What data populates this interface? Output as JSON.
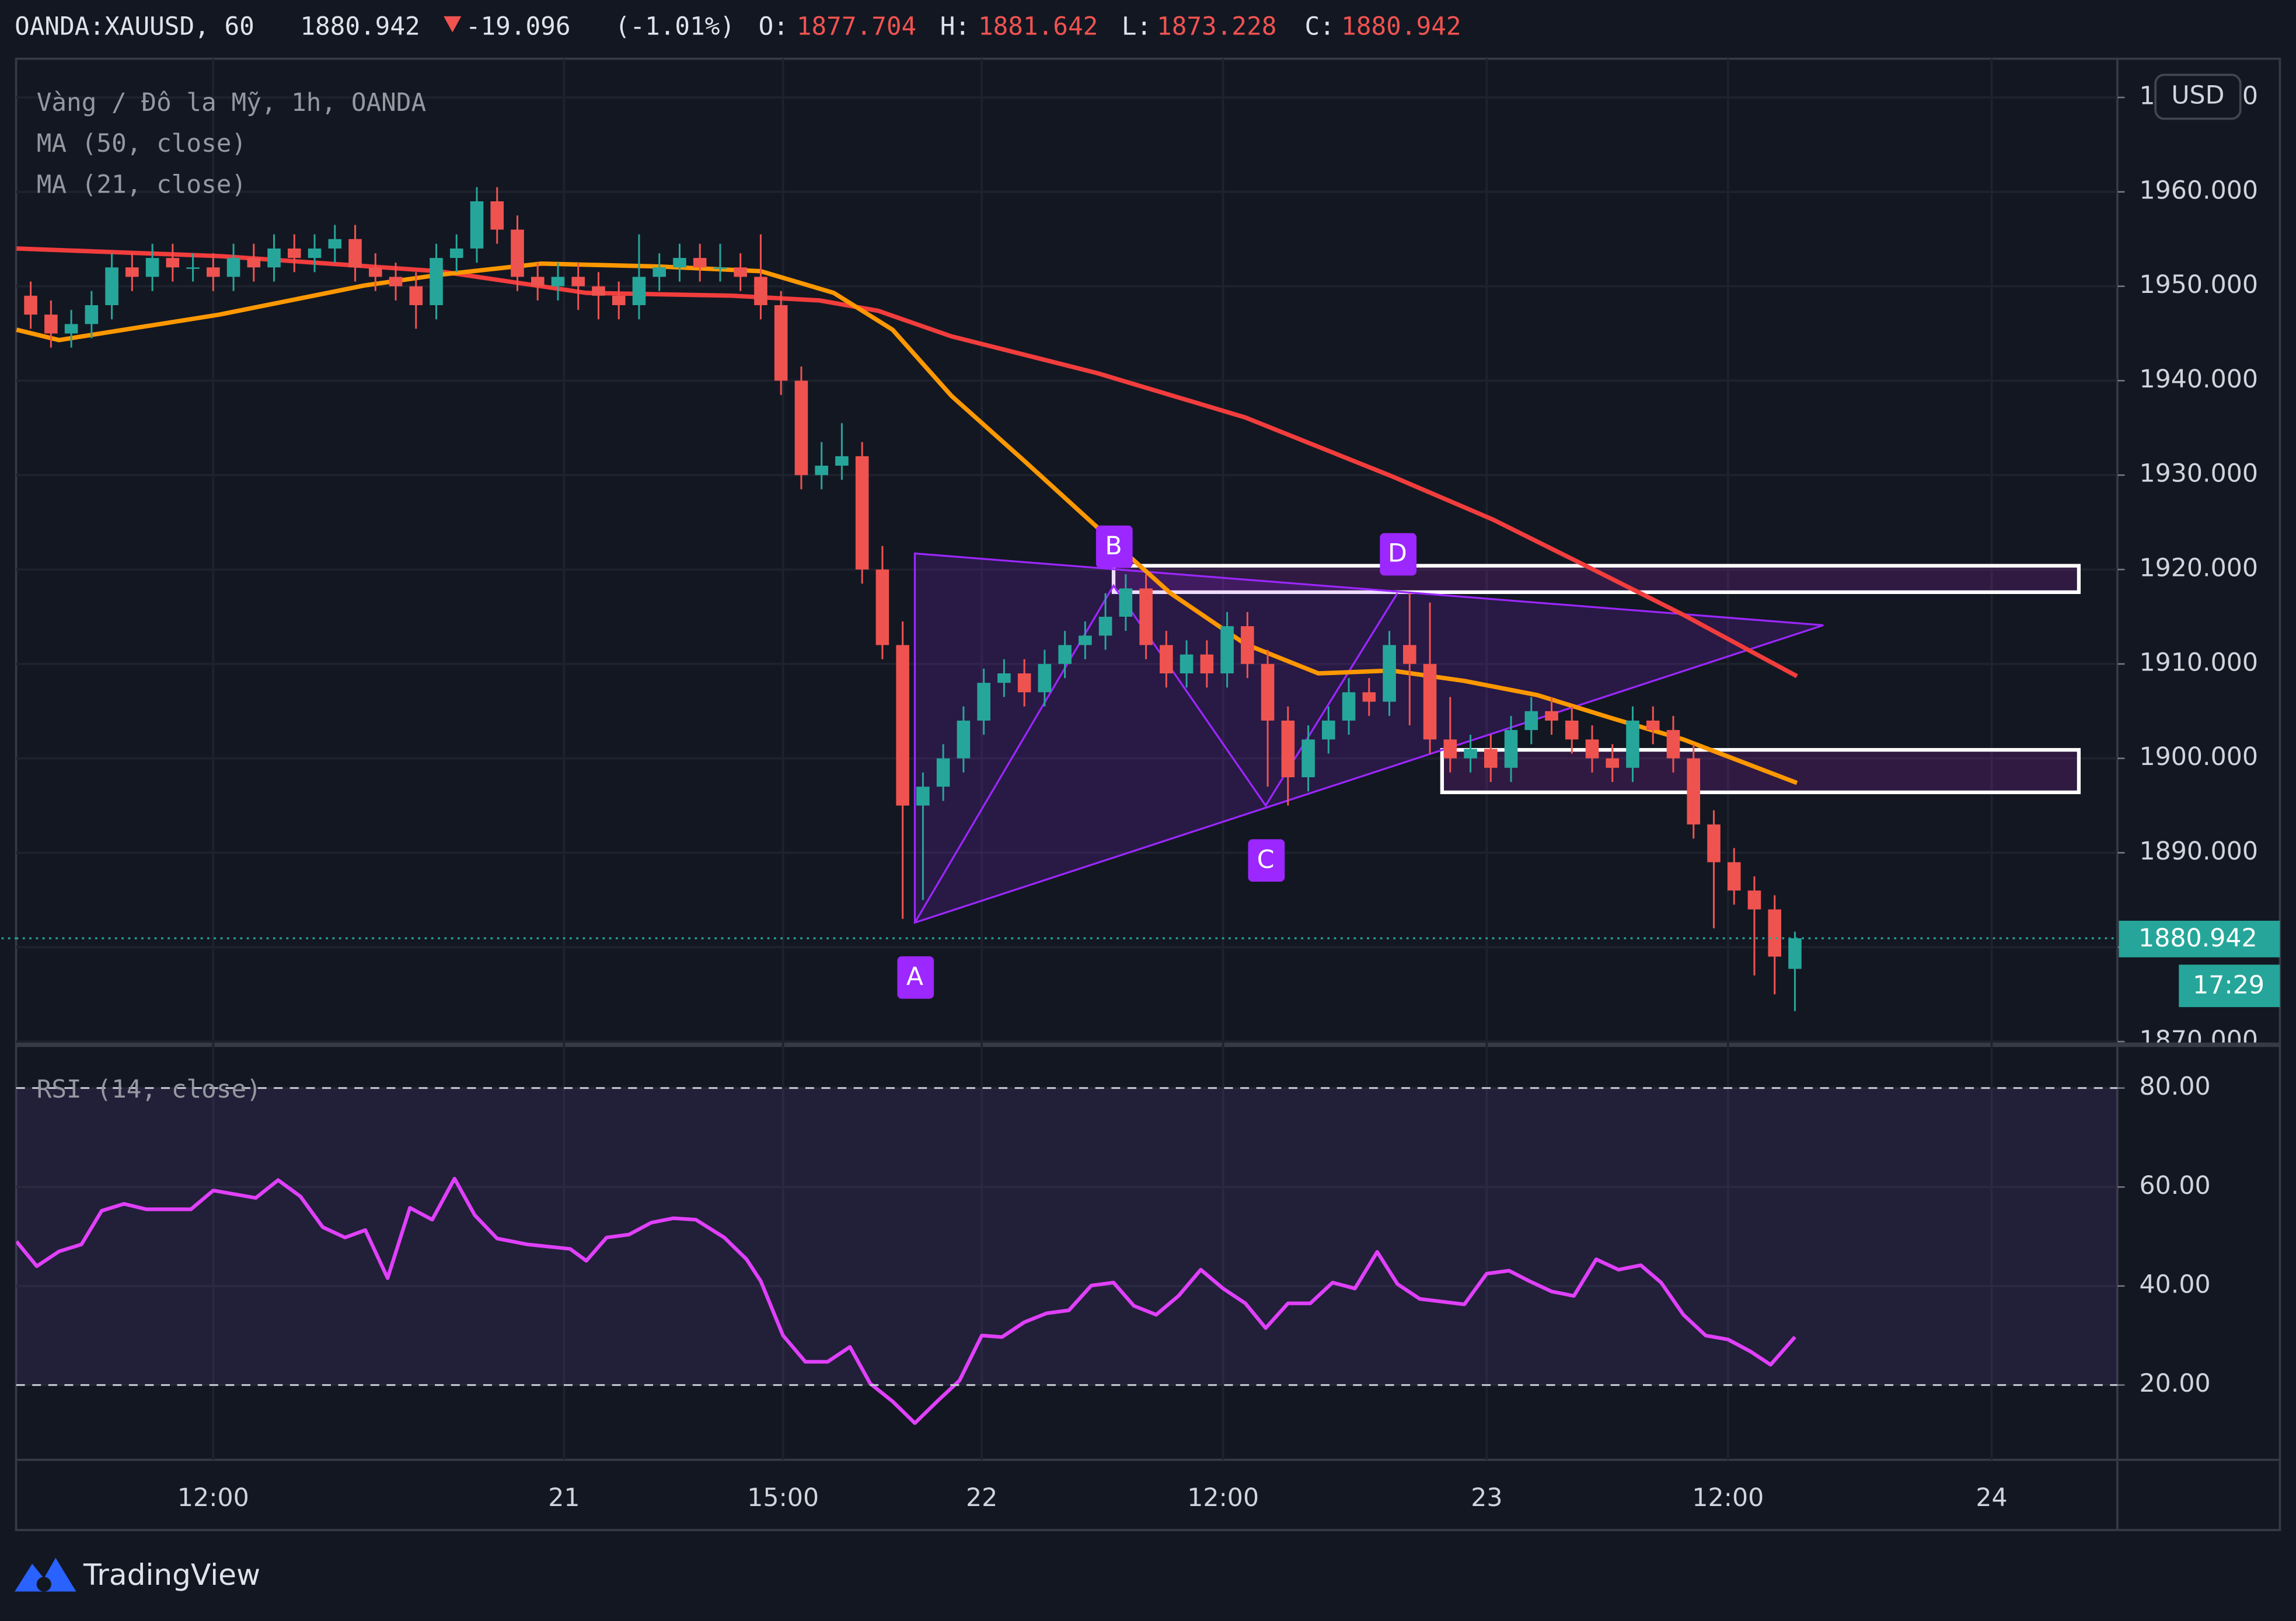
{
  "header": {
    "symbol": "OANDA:XAUUSD, 60",
    "change": -19.096,
    "change_pct": "(-1.01%)",
    "o": "O:",
    "h": "H:",
    "l": "L:",
    "c": "C:"
  },
  "chart_data": [
    {
      "type": "candlestick",
      "title": "Vàng / Đô la Mỹ, 1h, OANDA",
      "currency": "USD",
      "countdown": "17:29",
      "up_color": "#26a69a",
      "down_color": "#ef5350",
      "grid": true,
      "xlim": [
        -0.72,
        102.9
      ],
      "xticks": [
        {
          "value": 9.0,
          "label": "12:00"
        },
        {
          "value": 26.3,
          "label": "21"
        },
        {
          "value": 37.1,
          "label": "15:00"
        },
        {
          "value": 46.9,
          "label": "22"
        },
        {
          "value": 58.8,
          "label": "12:00"
        },
        {
          "value": 71.8,
          "label": "23"
        },
        {
          "value": 83.7,
          "label": "12:00"
        },
        {
          "value": 96.7,
          "label": "24"
        }
      ],
      "ylim": [
        1869.9,
        1974.1
      ],
      "yticks": [
        {
          "value": 1870,
          "label": "1870.000"
        },
        {
          "value": 1880,
          "label": "1880.000"
        },
        {
          "value": 1890,
          "label": "1890.000"
        },
        {
          "value": 1900,
          "label": "1900.000"
        },
        {
          "value": 1910,
          "label": "1910.000"
        },
        {
          "value": 1920,
          "label": "1920.000"
        },
        {
          "value": 1930,
          "label": "1930.000"
        },
        {
          "value": 1940,
          "label": "1940.000"
        },
        {
          "value": 1950,
          "label": "1950.000"
        },
        {
          "value": 1960,
          "label": "1960.000"
        },
        {
          "value": 1970,
          "label": "1970.000"
        }
      ],
      "open": [
        1949,
        1947,
        1945,
        1946,
        1948,
        1952,
        1951,
        1953,
        1952,
        1952,
        1951,
        1953,
        1952,
        1954,
        1953,
        1954,
        1955,
        1952,
        1951,
        1950,
        1948,
        1953,
        1954,
        1959,
        1956,
        1951,
        1950,
        1951,
        1950,
        1949,
        1948,
        1951,
        1952,
        1953,
        1952,
        1952,
        1951,
        1948,
        1940,
        1930,
        1931,
        1932,
        1920,
        1912,
        1895,
        1897,
        1900,
        1904,
        1908,
        1909,
        1907,
        1910,
        1912,
        1913,
        1915,
        1918,
        1912,
        1909,
        1911,
        1909,
        1914,
        1910,
        1904,
        1898,
        1902,
        1904,
        1907,
        1906,
        1912,
        1910,
        1902,
        1900,
        1901,
        1899,
        1903,
        1905,
        1904,
        1902,
        1900,
        1899,
        1904,
        1903,
        1900,
        1893,
        1889,
        1886,
        1884,
        1877.704
      ],
      "high": [
        1950.5,
        1948.5,
        1947.5,
        1949.5,
        1953.5,
        1953.5,
        1954.5,
        1954.5,
        1953.5,
        1953.5,
        1954.5,
        1954.5,
        1955.5,
        1955.5,
        1955.5,
        1956.5,
        1956.5,
        1953.5,
        1952.5,
        1951.5,
        1954.5,
        1955.5,
        1960.5,
        1960.5,
        1957.5,
        1952.5,
        1952.5,
        1952.5,
        1951.5,
        1950.5,
        1955.5,
        1953.5,
        1954.5,
        1954.5,
        1954.5,
        1953.5,
        1955.5,
        1949.5,
        1941.5,
        1933.5,
        1935.5,
        1933.5,
        1922.5,
        1914.5,
        1898.5,
        1901.5,
        1905.5,
        1909.5,
        1910.5,
        1910.5,
        1911.5,
        1913.5,
        1914.5,
        1917.5,
        1919.5,
        1919.5,
        1913.5,
        1912.5,
        1912.5,
        1915.5,
        1915.5,
        1911.5,
        1905.5,
        1903.5,
        1905.5,
        1908.5,
        1908.5,
        1913.5,
        1917.5,
        1916.5,
        1906.5,
        1902.5,
        1902.5,
        1904.5,
        1906.5,
        1906.5,
        1905.5,
        1903.5,
        1901.5,
        1905.5,
        1905.5,
        1904.5,
        1901.5,
        1894.5,
        1890.5,
        1887.5,
        1885.5,
        1881.642
      ],
      "low": [
        1945.5,
        1943.5,
        1943.5,
        1944.5,
        1946.5,
        1949.5,
        1949.5,
        1950.5,
        1950.5,
        1949.5,
        1949.5,
        1950.5,
        1950.5,
        1951.5,
        1951.5,
        1952.5,
        1950.5,
        1949.5,
        1948.5,
        1945.5,
        1946.5,
        1951.5,
        1952.5,
        1954.5,
        1949.5,
        1948.5,
        1948.5,
        1947.5,
        1946.5,
        1946.5,
        1946.5,
        1949.5,
        1950.5,
        1950.5,
        1950.5,
        1949.5,
        1946.5,
        1938.5,
        1928.5,
        1928.5,
        1929.5,
        1918.5,
        1910.5,
        1883,
        1885,
        1895.5,
        1898.5,
        1902.5,
        1906.5,
        1905.5,
        1905.5,
        1908.5,
        1910.5,
        1911.5,
        1913.5,
        1910.5,
        1907.5,
        1907.5,
        1907.5,
        1907.5,
        1908.5,
        1897,
        1895,
        1896.5,
        1900.5,
        1902.5,
        1904.5,
        1904.5,
        1903.5,
        1900.5,
        1898.5,
        1898.5,
        1897.5,
        1897.5,
        1901.5,
        1902.5,
        1900.5,
        1898.5,
        1897.5,
        1897.5,
        1901.5,
        1898.5,
        1891.5,
        1882,
        1884.5,
        1877,
        1875,
        1873.228
      ],
      "close": [
        1947,
        1945,
        1946,
        1948,
        1952,
        1951,
        1953,
        1952,
        1952,
        1951,
        1953,
        1952,
        1954,
        1953,
        1954,
        1955,
        1952,
        1951,
        1950,
        1948,
        1953,
        1954,
        1959,
        1956,
        1951,
        1950,
        1951,
        1950,
        1949,
        1948,
        1951,
        1952,
        1953,
        1952,
        1952,
        1951,
        1948,
        1940,
        1930,
        1931,
        1932,
        1920,
        1912,
        1895,
        1897,
        1900,
        1904,
        1908,
        1909,
        1907,
        1910,
        1912,
        1913,
        1915,
        1918,
        1912,
        1909,
        1911,
        1909,
        1914,
        1910,
        1904,
        1898,
        1902,
        1904,
        1907,
        1906,
        1912,
        1910,
        1902,
        1900,
        1901,
        1899,
        1903,
        1905,
        1904,
        1902,
        1900,
        1899,
        1904,
        1903,
        1900,
        1893,
        1889,
        1886,
        1884,
        1879,
        1880.942
      ],
      "overlays": [
        {
          "name": "MA (50, close)",
          "color": "#f23d3d",
          "x": [
            -0.7,
            9.3,
            20.1,
            27.4,
            34.6,
            38.9,
            41.8,
            45.4,
            52.6,
            59.9,
            67.1,
            72.1,
            76.5,
            81.5,
            87.1
          ],
          "values": [
            1954,
            1953.2,
            1951.6,
            1949.3,
            1949,
            1948.5,
            1947.4,
            1944.7,
            1940.8,
            1936.1,
            1929.9,
            1925.3,
            1920.6,
            1915.2,
            1908.7
          ]
        },
        {
          "name": "MA (21, close)",
          "color": "#ff9800",
          "x": [
            -0.7,
            1.4,
            9.3,
            16.5,
            20.1,
            25.2,
            30.9,
            36.0,
            39.6,
            42.5,
            45.4,
            49.0,
            53.4,
            56.2,
            59.9,
            63.5,
            67.1,
            70.7,
            74.3,
            77.9,
            81.5,
            87.1
          ],
          "values": [
            1945.4,
            1944.3,
            1947,
            1950.1,
            1951.2,
            1952.4,
            1952.1,
            1951.6,
            1949.3,
            1945.4,
            1938.4,
            1931.5,
            1922.9,
            1917.5,
            1912.1,
            1909,
            1909.3,
            1908.2,
            1906.7,
            1904.3,
            1902,
            1897.4
          ]
        }
      ],
      "pattern": {
        "color": "#9c27ff",
        "points": [
          {
            "label": "A",
            "x": 43.6,
            "y": 1882.6
          },
          {
            "label": "B",
            "x": 53.4,
            "y": 1918.3
          },
          {
            "label": "C",
            "x": 60.9,
            "y": 1895
          },
          {
            "label": "D",
            "x": 67.4,
            "y": 1917.5
          }
        ],
        "corner": {
          "x": 43.6,
          "y": 1921.7
        },
        "apex": {
          "x": 88.4,
          "y": 1914.1
        }
      },
      "zones": [
        {
          "x": [
            53.4,
            101.0
          ],
          "y": [
            1917.6,
            1920.4
          ]
        },
        {
          "x": [
            69.6,
            101.0
          ],
          "y": [
            1896.4,
            1900.9
          ]
        }
      ]
    },
    {
      "type": "line",
      "name": "RSI (14, close)",
      "color": "#e040fb",
      "band": [
        20,
        80
      ],
      "ylim": [
        4.9,
        88.3
      ],
      "yticks": [
        {
          "value": 20,
          "label": "20.00"
        },
        {
          "value": 40,
          "label": "40.00"
        },
        {
          "value": 60,
          "label": "60.00"
        },
        {
          "value": 80,
          "label": "80.00"
        }
      ],
      "x": [
        -0.7,
        0.3,
        1.4,
        2.5,
        3.5,
        4.6,
        5.7,
        7.9,
        9.0,
        11.1,
        12.2,
        13.3,
        14.4,
        15.5,
        16.5,
        17.6,
        18.7,
        19.8,
        20.9,
        21.9,
        23.0,
        24.5,
        26.6,
        27.4,
        28.4,
        29.5,
        30.6,
        31.7,
        32.8,
        34.2,
        35.3,
        36.0,
        37.1,
        38.2,
        39.3,
        40.4,
        41.4,
        42.5,
        43.6,
        44.7,
        45.8,
        46.9,
        47.9,
        49.0,
        50.1,
        51.2,
        52.3,
        53.4,
        54.4,
        55.5,
        56.6,
        57.7,
        58.8,
        59.9,
        60.9,
        62.0,
        63.1,
        64.2,
        65.3,
        66.4,
        67.4,
        68.5,
        70.7,
        71.8,
        72.9,
        73.9,
        75.0,
        76.1,
        77.2,
        78.3,
        79.4,
        80.4,
        81.5,
        82.6,
        83.7,
        84.8,
        85.8,
        87.0
      ],
      "values": [
        49,
        44,
        47,
        48.4,
        55.2,
        56.6,
        55.5,
        55.5,
        59.3,
        57.8,
        61.4,
        58.1,
        51.9,
        49.8,
        51.3,
        41.6,
        55.8,
        53.4,
        61.7,
        54.3,
        49.6,
        48.4,
        47.5,
        45.1,
        49.8,
        50.4,
        52.8,
        53.7,
        53.4,
        49.8,
        45.4,
        41,
        30,
        24.7,
        24.7,
        27.7,
        20.3,
        16.7,
        12.3,
        16.7,
        20.9,
        30,
        29.7,
        32.7,
        34.5,
        35.1,
        40.1,
        40.7,
        36,
        34.2,
        38,
        43.3,
        39.5,
        36.5,
        31.5,
        36.5,
        36.5,
        40.7,
        39.5,
        46.9,
        40.4,
        37.4,
        36.3,
        42.5,
        43.1,
        41,
        38.9,
        38,
        45.4,
        43.3,
        44.2,
        40.7,
        34.2,
        30,
        29.2,
        26.8,
        24.1,
        29.7
      ]
    }
  ],
  "footer": {
    "brand": "TradingView"
  }
}
